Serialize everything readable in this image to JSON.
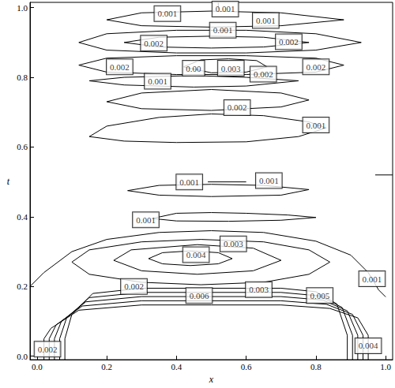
{
  "chart_data": {
    "type": "contour",
    "x_label": "x",
    "y_label": "t",
    "xlim": [
      -0.02,
      1.02
    ],
    "ylim": [
      -0.01,
      1.015
    ],
    "xticks": [
      {
        "value": 0,
        "label": "0.0"
      },
      {
        "value": 0.2,
        "label": "0.2"
      },
      {
        "value": 0.4,
        "label": "0.4"
      },
      {
        "value": 0.6,
        "label": "0.6"
      },
      {
        "value": 0.8,
        "label": "0.8"
      },
      {
        "value": 1,
        "label": "1.0"
      }
    ],
    "yticks": [
      {
        "value": 0,
        "label": "0.0"
      },
      {
        "value": 0.2,
        "label": "0.2"
      },
      {
        "value": 0.4,
        "label": "0.4"
      },
      {
        "value": 0.6,
        "label": "0.6"
      },
      {
        "value": 0.8,
        "label": "0.8"
      },
      {
        "value": 1,
        "label": "1.0"
      }
    ],
    "grid": false,
    "color": "#000000",
    "contours": [
      [
        [
          0.08,
          -0.01
        ],
        [
          0.08,
          0.05
        ],
        [
          0.1,
          0.12
        ],
        [
          0.16,
          0.18
        ],
        [
          0.3,
          0.195
        ],
        [
          0.5,
          0.195
        ],
        [
          0.7,
          0.195
        ],
        [
          0.8,
          0.185
        ],
        [
          0.86,
          0.15
        ],
        [
          0.89,
          0.06
        ],
        [
          0.89,
          -0.01
        ]
      ],
      [
        [
          0.065,
          -0.01
        ],
        [
          0.065,
          0.05
        ],
        [
          0.085,
          0.11
        ],
        [
          0.15,
          0.168
        ],
        [
          0.3,
          0.183
        ],
        [
          0.5,
          0.183
        ],
        [
          0.7,
          0.183
        ],
        [
          0.81,
          0.173
        ],
        [
          0.875,
          0.14
        ],
        [
          0.905,
          0.06
        ],
        [
          0.905,
          -0.01
        ]
      ],
      [
        [
          0.05,
          -0.01
        ],
        [
          0.05,
          0.05
        ],
        [
          0.07,
          0.1
        ],
        [
          0.14,
          0.156
        ],
        [
          0.3,
          0.171
        ],
        [
          0.5,
          0.171
        ],
        [
          0.7,
          0.171
        ],
        [
          0.82,
          0.161
        ],
        [
          0.89,
          0.13
        ],
        [
          0.92,
          0.06
        ],
        [
          0.92,
          -0.01
        ]
      ],
      [
        [
          0.035,
          -0.01
        ],
        [
          0.035,
          0.05
        ],
        [
          0.055,
          0.09
        ],
        [
          0.13,
          0.144
        ],
        [
          0.3,
          0.159
        ],
        [
          0.5,
          0.159
        ],
        [
          0.7,
          0.159
        ],
        [
          0.83,
          0.149
        ],
        [
          0.905,
          0.12
        ],
        [
          0.935,
          0.06
        ],
        [
          0.935,
          -0.01
        ]
      ],
      [
        [
          0.02,
          -0.01
        ],
        [
          0.02,
          0.05
        ],
        [
          0.04,
          0.08
        ],
        [
          0.12,
          0.132
        ],
        [
          0.3,
          0.147
        ],
        [
          0.5,
          0.147
        ],
        [
          0.7,
          0.147
        ],
        [
          0.84,
          0.137
        ],
        [
          0.92,
          0.11
        ],
        [
          0.95,
          0.06
        ],
        [
          0.95,
          -0.01
        ]
      ],
      [
        [
          -0.02,
          0.2
        ],
        [
          0.02,
          0.24
        ],
        [
          0.1,
          0.3
        ],
        [
          0.2,
          0.335
        ],
        [
          0.35,
          0.355
        ],
        [
          0.5,
          0.36
        ],
        [
          0.65,
          0.355
        ],
        [
          0.8,
          0.33
        ],
        [
          0.9,
          0.29
        ],
        [
          0.95,
          0.24
        ],
        [
          0.98,
          0.19
        ],
        [
          1.0,
          0.17
        ]
      ],
      [
        [
          0.1,
          0.27
        ],
        [
          0.15,
          0.305
        ],
        [
          0.3,
          0.328
        ],
        [
          0.47,
          0.335
        ],
        [
          0.65,
          0.328
        ],
        [
          0.78,
          0.305
        ],
        [
          0.84,
          0.27
        ],
        [
          0.78,
          0.235
        ],
        [
          0.65,
          0.212
        ],
        [
          0.47,
          0.205
        ],
        [
          0.3,
          0.212
        ],
        [
          0.15,
          0.235
        ],
        [
          0.1,
          0.27
        ]
      ],
      [
        [
          0.22,
          0.275
        ],
        [
          0.27,
          0.305
        ],
        [
          0.46,
          0.32
        ],
        [
          0.62,
          0.31
        ],
        [
          0.7,
          0.275
        ],
        [
          0.62,
          0.245
        ],
        [
          0.46,
          0.235
        ],
        [
          0.3,
          0.245
        ],
        [
          0.22,
          0.275
        ]
      ],
      [
        [
          0.32,
          0.28
        ],
        [
          0.36,
          0.297
        ],
        [
          0.44,
          0.302
        ],
        [
          0.52,
          0.297
        ],
        [
          0.56,
          0.28
        ],
        [
          0.52,
          0.265
        ],
        [
          0.44,
          0.26
        ],
        [
          0.36,
          0.265
        ],
        [
          0.32,
          0.28
        ]
      ],
      [
        [
          0.33,
          0.395
        ],
        [
          0.4,
          0.41
        ],
        [
          0.5,
          0.412
        ],
        [
          0.6,
          0.41
        ],
        [
          0.72,
          0.405
        ],
        [
          0.8,
          0.398
        ],
        [
          0.7,
          0.39
        ],
        [
          0.55,
          0.387
        ],
        [
          0.4,
          0.388
        ],
        [
          0.33,
          0.395
        ]
      ],
      [
        [
          0.26,
          0.475
        ],
        [
          0.35,
          0.49
        ],
        [
          0.5,
          0.493
        ],
        [
          0.65,
          0.49
        ],
        [
          0.78,
          0.478
        ],
        [
          0.7,
          0.462
        ],
        [
          0.5,
          0.458
        ],
        [
          0.35,
          0.462
        ],
        [
          0.26,
          0.475
        ]
      ],
      [
        [
          0.49,
          0.5
        ],
        [
          0.6,
          0.5
        ]
      ],
      [
        [
          0.97,
          0.52
        ],
        [
          1.02,
          0.52
        ]
      ],
      [
        [
          0.15,
          0.63
        ],
        [
          0.2,
          0.66
        ],
        [
          0.35,
          0.685
        ],
        [
          0.5,
          0.695
        ],
        [
          0.65,
          0.69
        ],
        [
          0.78,
          0.672
        ],
        [
          0.83,
          0.655
        ],
        [
          0.75,
          0.63
        ],
        [
          0.6,
          0.615
        ],
        [
          0.4,
          0.613
        ],
        [
          0.25,
          0.617
        ],
        [
          0.15,
          0.63
        ]
      ],
      [
        [
          0.2,
          0.73
        ],
        [
          0.3,
          0.755
        ],
        [
          0.5,
          0.765
        ],
        [
          0.7,
          0.755
        ],
        [
          0.78,
          0.735
        ],
        [
          0.7,
          0.715
        ],
        [
          0.5,
          0.705
        ],
        [
          0.3,
          0.71
        ],
        [
          0.2,
          0.73
        ]
      ],
      [
        [
          0.15,
          0.79
        ],
        [
          0.25,
          0.8
        ],
        [
          0.45,
          0.805
        ],
        [
          0.6,
          0.8
        ],
        [
          0.75,
          0.79
        ],
        [
          0.6,
          0.775
        ],
        [
          0.45,
          0.772
        ],
        [
          0.25,
          0.778
        ],
        [
          0.15,
          0.79
        ]
      ],
      [
        [
          0.12,
          0.835
        ],
        [
          0.2,
          0.855
        ],
        [
          0.4,
          0.862
        ],
        [
          0.6,
          0.862
        ],
        [
          0.8,
          0.855
        ],
        [
          0.88,
          0.835
        ],
        [
          0.8,
          0.815
        ],
        [
          0.6,
          0.808
        ],
        [
          0.4,
          0.808
        ],
        [
          0.2,
          0.815
        ],
        [
          0.12,
          0.835
        ]
      ],
      [
        [
          0.42,
          0.83
        ],
        [
          0.47,
          0.85
        ],
        [
          0.55,
          0.853
        ],
        [
          0.63,
          0.848
        ],
        [
          0.66,
          0.83
        ],
        [
          0.6,
          0.815
        ],
        [
          0.5,
          0.813
        ],
        [
          0.42,
          0.83
        ]
      ],
      [
        [
          0.12,
          0.9
        ],
        [
          0.2,
          0.925
        ],
        [
          0.4,
          0.935
        ],
        [
          0.6,
          0.935
        ],
        [
          0.8,
          0.925
        ],
        [
          0.93,
          0.9
        ],
        [
          0.8,
          0.878
        ],
        [
          0.6,
          0.87
        ],
        [
          0.4,
          0.87
        ],
        [
          0.2,
          0.878
        ],
        [
          0.12,
          0.9
        ]
      ],
      [
        [
          0.25,
          0.9
        ],
        [
          0.35,
          0.915
        ],
        [
          0.5,
          0.918
        ],
        [
          0.65,
          0.915
        ],
        [
          0.78,
          0.9
        ],
        [
          0.65,
          0.887
        ],
        [
          0.5,
          0.884
        ],
        [
          0.35,
          0.887
        ],
        [
          0.25,
          0.9
        ]
      ],
      [
        [
          0.2,
          0.965
        ],
        [
          0.3,
          0.985
        ],
        [
          0.5,
          0.99
        ],
        [
          0.7,
          0.985
        ],
        [
          0.88,
          0.965
        ],
        [
          0.7,
          0.948
        ],
        [
          0.5,
          0.944
        ],
        [
          0.3,
          0.948
        ],
        [
          0.2,
          0.965
        ]
      ],
      [
        [
          0.52,
          0.995
        ],
        [
          0.52,
          1.02
        ]
      ]
    ],
    "annotations": [
      {
        "x": 0.03,
        "t": 0.02,
        "text": "0.002"
      },
      {
        "x": 0.95,
        "t": 0.03,
        "text": "0.004"
      },
      {
        "x": 0.278,
        "t": 0.2,
        "text": "0.002"
      },
      {
        "x": 0.465,
        "t": 0.174,
        "text": "0.006"
      },
      {
        "x": 0.636,
        "t": 0.191,
        "text": "0.003"
      },
      {
        "x": 0.811,
        "t": 0.174,
        "text": "0.005"
      },
      {
        "x": 0.456,
        "t": 0.291,
        "text": "0.004"
      },
      {
        "x": 0.563,
        "t": 0.322,
        "text": "0.003"
      },
      {
        "x": 0.961,
        "t": 0.222,
        "text": "0.001"
      },
      {
        "x": 0.312,
        "t": 0.391,
        "text": "0.001"
      },
      {
        "x": 0.665,
        "t": 0.504,
        "text": "0.001"
      },
      {
        "x": 0.437,
        "t": 0.5,
        "text": "0.001"
      },
      {
        "x": 0.8,
        "t": 0.663,
        "text": "0.001"
      },
      {
        "x": 0.574,
        "t": 0.713,
        "text": "0.002"
      },
      {
        "x": 0.346,
        "t": 0.789,
        "text": "0.001"
      },
      {
        "x": 0.237,
        "t": 0.83,
        "text": "0.002"
      },
      {
        "x": 0.449,
        "t": 0.826,
        "text": "0.00"
      },
      {
        "x": 0.556,
        "t": 0.826,
        "text": "0.003"
      },
      {
        "x": 0.649,
        "t": 0.809,
        "text": "0.002"
      },
      {
        "x": 0.8,
        "t": 0.83,
        "text": "0.002"
      },
      {
        "x": 0.335,
        "t": 0.898,
        "text": "0.002"
      },
      {
        "x": 0.722,
        "t": 0.902,
        "text": "0.002"
      },
      {
        "x": 0.374,
        "t": 0.983,
        "text": "0.001"
      },
      {
        "x": 0.54,
        "t": 0.996,
        "text": "0.001"
      },
      {
        "x": 0.533,
        "t": 0.935,
        "text": "0.001"
      },
      {
        "x": 0.656,
        "t": 0.963,
        "text": "0.001"
      }
    ]
  }
}
